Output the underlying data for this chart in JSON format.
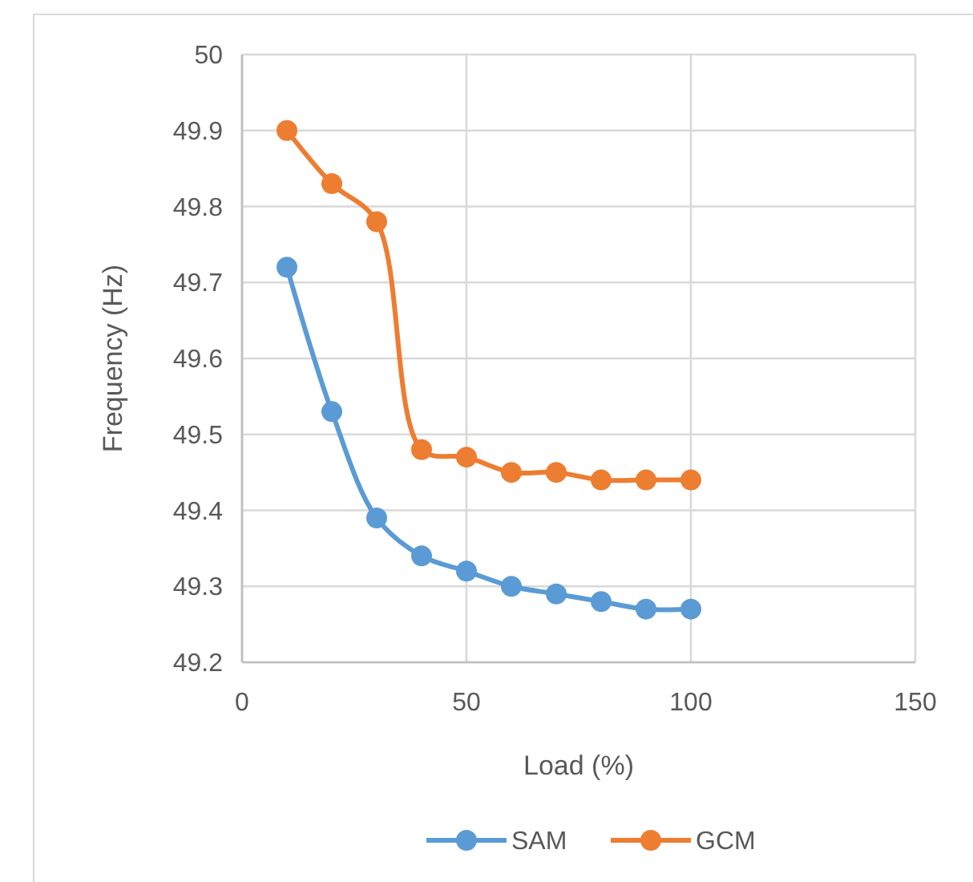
{
  "chart_data": {
    "type": "line",
    "xlabel": "Load (%)",
    "ylabel": "Frequency (Hz)",
    "x": [
      10,
      20,
      30,
      40,
      50,
      60,
      70,
      80,
      90,
      100
    ],
    "series": [
      {
        "name": "SAM",
        "color": "#5b9bd5",
        "values": [
          49.72,
          49.53,
          49.39,
          49.34,
          49.32,
          49.3,
          49.29,
          49.28,
          49.27,
          49.27
        ]
      },
      {
        "name": "GCM",
        "color": "#ed7d31",
        "values": [
          49.9,
          49.83,
          49.78,
          49.48,
          49.47,
          49.45,
          49.45,
          49.44,
          49.44,
          49.44
        ]
      }
    ],
    "xlim": [
      0,
      150
    ],
    "xticks": [
      0,
      50,
      100,
      150
    ],
    "ylim": [
      49.2,
      50
    ],
    "yticks": [
      49.2,
      49.3,
      49.4,
      49.5,
      49.6,
      49.7,
      49.8,
      49.9,
      {
        "value": 50,
        "label": "50"
      }
    ],
    "grid": true,
    "legend": "bottom",
    "marker": "circle",
    "line_style": "solid"
  }
}
